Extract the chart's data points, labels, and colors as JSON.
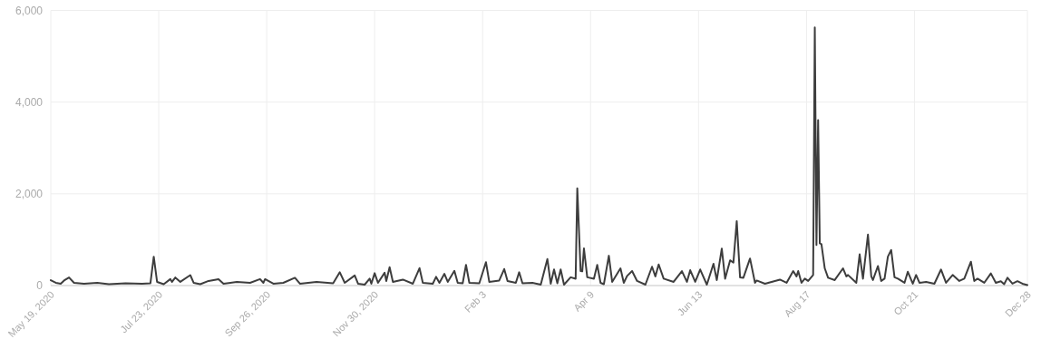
{
  "chart_data": {
    "type": "line",
    "x": [
      "2020-05-19",
      "2020-05-22",
      "2020-05-25",
      "2020-05-27",
      "2020-05-30",
      "2020-06-02",
      "2020-06-08",
      "2020-06-16",
      "2020-06-23",
      "2020-07-03",
      "2020-07-13",
      "2020-07-18",
      "2020-07-20",
      "2020-07-22",
      "2020-07-26",
      "2020-07-30",
      "2020-07-31",
      "2020-08-02",
      "2020-08-05",
      "2020-08-11",
      "2020-08-13",
      "2020-08-17",
      "2020-08-22",
      "2020-08-28",
      "2020-08-31",
      "2020-09-08",
      "2020-09-16",
      "2020-09-22",
      "2020-09-24",
      "2020-09-25",
      "2020-09-30",
      "2020-10-06",
      "2020-10-13",
      "2020-10-16",
      "2020-10-26",
      "2020-11-05",
      "2020-11-09",
      "2020-11-12",
      "2020-11-18",
      "2020-11-20",
      "2020-11-24",
      "2020-11-27",
      "2020-11-28",
      "2020-11-30",
      "2020-12-02",
      "2020-12-06",
      "2020-12-07",
      "2020-12-09",
      "2020-12-11",
      "2020-12-17",
      "2020-12-23",
      "2020-12-27",
      "2020-12-29",
      "2021-01-04",
      "2021-01-06",
      "2021-01-08",
      "2021-01-11",
      "2021-01-13",
      "2021-01-17",
      "2021-01-19",
      "2021-01-22",
      "2021-01-24",
      "2021-01-26",
      "2021-02-01",
      "2021-02-05",
      "2021-02-07",
      "2021-02-13",
      "2021-02-16",
      "2021-02-18",
      "2021-02-23",
      "2021-02-25",
      "2021-02-27",
      "2021-03-05",
      "2021-03-10",
      "2021-03-14",
      "2021-03-16",
      "2021-03-18",
      "2021-03-20",
      "2021-03-22",
      "2021-03-24",
      "2021-03-28",
      "2021-03-31",
      "2021-04-01",
      "2021-04-03",
      "2021-04-04",
      "2021-04-05",
      "2021-04-07",
      "2021-04-11",
      "2021-04-13",
      "2021-04-15",
      "2021-04-17",
      "2021-04-20",
      "2021-04-22",
      "2021-04-27",
      "2021-04-29",
      "2021-05-01",
      "2021-05-04",
      "2021-05-07",
      "2021-05-12",
      "2021-05-16",
      "2021-05-18",
      "2021-05-20",
      "2021-05-23",
      "2021-05-29",
      "2021-06-03",
      "2021-06-06",
      "2021-06-08",
      "2021-06-11",
      "2021-06-14",
      "2021-06-18",
      "2021-06-22",
      "2021-06-24",
      "2021-06-27",
      "2021-06-29",
      "2021-07-02",
      "2021-07-04",
      "2021-07-06",
      "2021-07-08",
      "2021-07-10",
      "2021-07-14",
      "2021-07-17",
      "2021-07-18",
      "2021-07-23",
      "2021-08-01",
      "2021-08-05",
      "2021-08-09",
      "2021-08-11",
      "2021-08-12",
      "2021-08-14",
      "2021-08-16",
      "2021-08-18",
      "2021-08-21",
      "2021-08-22",
      "2021-08-23",
      "2021-08-24",
      "2021-08-25",
      "2021-08-26",
      "2021-08-28",
      "2021-08-30",
      "2021-09-03",
      "2021-09-08",
      "2021-09-10",
      "2021-09-11",
      "2021-09-16",
      "2021-09-18",
      "2021-09-20",
      "2021-09-23",
      "2021-09-25",
      "2021-09-26",
      "2021-09-29",
      "2021-10-01",
      "2021-10-03",
      "2021-10-05",
      "2021-10-07",
      "2021-10-09",
      "2021-10-11",
      "2021-10-15",
      "2021-10-17",
      "2021-10-20",
      "2021-10-22",
      "2021-10-24",
      "2021-10-28",
      "2021-11-02",
      "2021-11-06",
      "2021-11-09",
      "2021-11-13",
      "2021-11-17",
      "2021-11-20",
      "2021-11-24",
      "2021-11-26",
      "2021-11-28",
      "2021-12-02",
      "2021-12-06",
      "2021-12-09",
      "2021-12-12",
      "2021-12-14",
      "2021-12-16",
      "2021-12-19",
      "2021-12-22",
      "2021-12-25",
      "2021-12-28"
    ],
    "series": [
      {
        "color": "#3d3d3d",
        "values": [
          117,
          60,
          40,
          110,
          175,
          60,
          40,
          60,
          30,
          50,
          40,
          50,
          630,
          80,
          30,
          140,
          80,
          175,
          80,
          227,
          60,
          30,
          100,
          140,
          40,
          80,
          60,
          140,
          60,
          140,
          40,
          60,
          170,
          40,
          80,
          50,
          290,
          60,
          220,
          40,
          20,
          150,
          40,
          270,
          60,
          280,
          100,
          400,
          80,
          130,
          40,
          380,
          60,
          40,
          190,
          60,
          256,
          80,
          320,
          60,
          50,
          450,
          60,
          50,
          510,
          80,
          110,
          360,
          100,
          60,
          290,
          50,
          60,
          20,
          578,
          40,
          350,
          50,
          350,
          20,
          180,
          150,
          2120,
          315,
          310,
          810,
          180,
          150,
          450,
          60,
          30,
          650,
          80,
          375,
          60,
          210,
          315,
          100,
          20,
          410,
          200,
          460,
          150,
          80,
          315,
          80,
          335,
          80,
          350,
          20,
          475,
          120,
          805,
          150,
          550,
          500,
          1405,
          180,
          170,
          590,
          60,
          110,
          40,
          130,
          60,
          315,
          200,
          315,
          60,
          150,
          100,
          230,
          5627,
          885,
          3607,
          920,
          900,
          375,
          170,
          120,
          375,
          200,
          230,
          60,
          680,
          150,
          1112,
          200,
          120,
          425,
          100,
          150,
          630,
          775,
          180,
          150,
          60,
          300,
          40,
          230,
          60,
          80,
          40,
          350,
          60,
          230,
          100,
          150,
          520,
          100,
          150,
          60,
          265,
          60,
          95,
          30,
          170,
          40,
          95,
          40,
          10
        ]
      }
    ],
    "xlim": [
      "2020-05-19",
      "2021-12-28"
    ],
    "xticks": [
      {
        "value": "2020-05-19",
        "label": "May 19, 2020"
      },
      {
        "value": "2020-07-23",
        "label": "Jul 23, 2020"
      },
      {
        "value": "2020-09-26",
        "label": "Sep 26, 2020"
      },
      {
        "value": "2020-11-30",
        "label": "Nov 30, 2020"
      },
      {
        "value": "2021-02-03",
        "label": "Feb 3"
      },
      {
        "value": "2021-04-09",
        "label": "Apr 9"
      },
      {
        "value": "2021-06-13",
        "label": "Jun 13"
      },
      {
        "value": "2021-08-17",
        "label": "Aug 17"
      },
      {
        "value": "2021-10-21",
        "label": "Oct 21"
      },
      {
        "value": "2021-12-28",
        "label": "Dec 28"
      }
    ],
    "ylim": [
      0,
      6000
    ],
    "yticks": [
      0,
      {
        "value": 2000,
        "label": "2,000"
      },
      {
        "value": 4000,
        "label": "4,000"
      },
      {
        "value": 6000,
        "label": "6,000"
      }
    ],
    "grid": true
  }
}
